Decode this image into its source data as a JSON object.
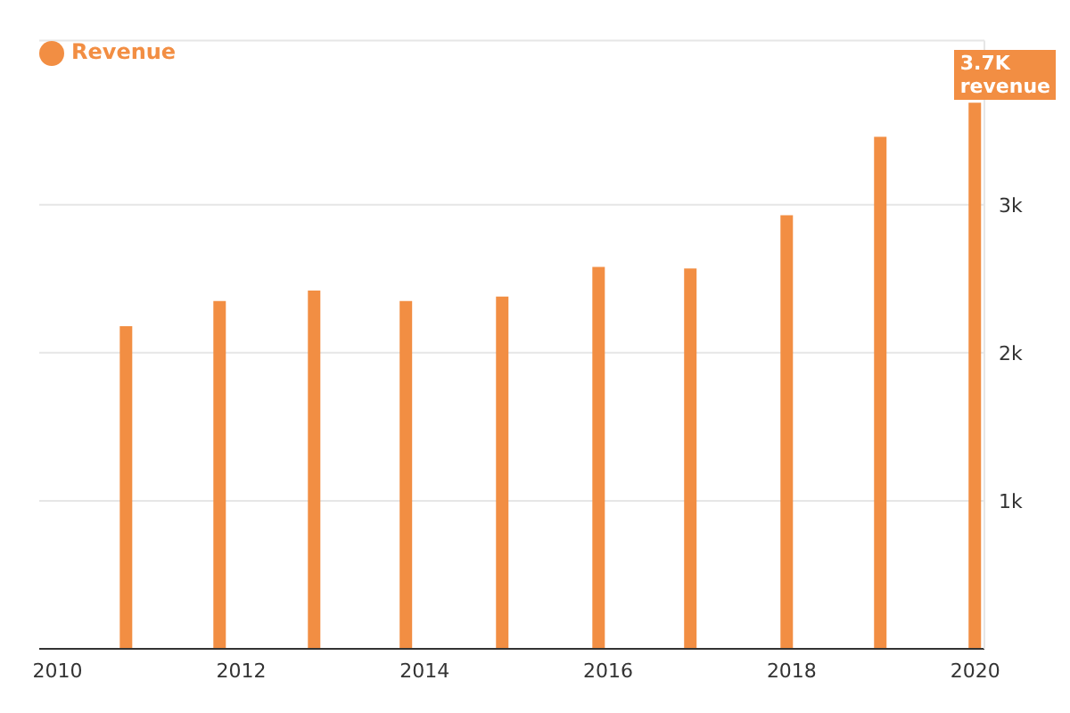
{
  "chart_data": {
    "type": "bar",
    "x": [
      2010.75,
      2011.77,
      2012.8,
      2013.8,
      2014.85,
      2015.9,
      2016.9,
      2017.95,
      2018.97,
      2020.0
    ],
    "series": [
      {
        "name": "Revenue",
        "color": "#f28e43",
        "values": [
          2180,
          2350,
          2420,
          2350,
          2380,
          2580,
          2570,
          2930,
          3460,
          3690
        ]
      }
    ],
    "xlim": [
      2009.8,
      2020.1
    ],
    "xticks": [
      2010,
      2012,
      2014,
      2016,
      2018,
      2020
    ],
    "ylim": [
      0,
      4110
    ],
    "yticks": [
      {
        "value": 1000,
        "label": "1k"
      },
      {
        "value": 2000,
        "label": "2k"
      },
      {
        "value": 3000,
        "label": "3k"
      }
    ],
    "grid": "y",
    "legend": "top left",
    "annotations": [
      "3.7K",
      "revenue"
    ]
  }
}
